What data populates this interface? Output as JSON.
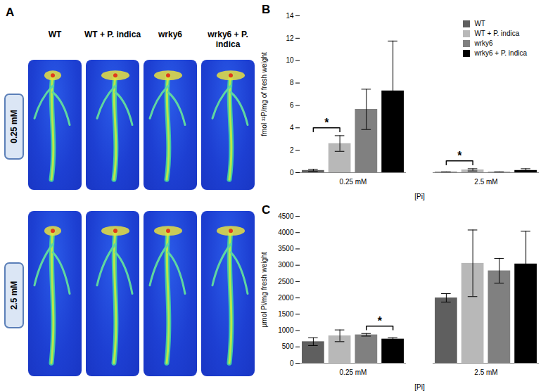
{
  "panel_a": {
    "title": "A",
    "columns": [
      "WT",
      "WT + P. indica",
      "wrky6",
      "wrky6 + P. indica"
    ],
    "rows": [
      "0.25 mM",
      "2.5 mM"
    ]
  },
  "chart_data": [
    {
      "type": "bar",
      "title": "B",
      "x_label": "[Pi]",
      "y_label": "fmol ³²P/mg of fresh weight",
      "categories": [
        "0.25 mM",
        "2.5 mM"
      ],
      "series": [
        {
          "name": "WT",
          "color": "#5f5f5f",
          "values": [
            0.2,
            0.05
          ],
          "errors": [
            0.1,
            0.02
          ]
        },
        {
          "name": "WT + P. indica",
          "color": "#b8b8b8",
          "values": [
            2.6,
            0.25
          ],
          "errors": [
            0.7,
            0.1
          ]
        },
        {
          "name": "wrky6",
          "color": "#808080",
          "values": [
            5.65,
            0.05
          ],
          "errors": [
            1.8,
            0.02
          ]
        },
        {
          "name": "wrky6 + P. indica",
          "color": "#000000",
          "values": [
            7.3,
            0.2
          ],
          "errors": [
            4.45,
            0.15
          ]
        }
      ],
      "significance": [
        {
          "category": "0.25 mM",
          "between": [
            "WT",
            "WT + P. indica"
          ],
          "label": "*"
        },
        {
          "category": "2.5 mM",
          "between": [
            "WT",
            "WT + P. indica"
          ],
          "label": "*"
        }
      ],
      "ylim": [
        0,
        14
      ],
      "yticks": [
        0,
        2,
        4,
        6,
        8,
        10,
        12,
        14
      ],
      "grid": false,
      "legend": "top-right"
    },
    {
      "type": "bar",
      "title": "C",
      "x_label": "[Pi]",
      "y_label": "µmol Pi/mg fresh weight",
      "categories": [
        "0.25 mM",
        "2.5 mM"
      ],
      "series": [
        {
          "name": "WT",
          "color": "#5f5f5f",
          "values": [
            660,
            2000
          ],
          "errors": [
            120,
            130
          ]
        },
        {
          "name": "WT + P. indica",
          "color": "#b8b8b8",
          "values": [
            840,
            3060
          ],
          "errors": [
            180,
            1020
          ]
        },
        {
          "name": "wrky6",
          "color": "#808080",
          "values": [
            870,
            2830
          ],
          "errors": [
            40,
            380
          ]
        },
        {
          "name": "wrky6 + P. indica",
          "color": "#000000",
          "values": [
            740,
            3040
          ],
          "errors": [
            40,
            1000
          ]
        }
      ],
      "significance": [
        {
          "category": "0.25 mM",
          "between": [
            "wrky6",
            "wrky6 + P. indica"
          ],
          "label": "*"
        }
      ],
      "ylim": [
        0,
        4500
      ],
      "yticks": [
        0,
        500,
        1000,
        1500,
        2000,
        2500,
        3000,
        3500,
        4000,
        4500
      ],
      "grid": false
    }
  ]
}
